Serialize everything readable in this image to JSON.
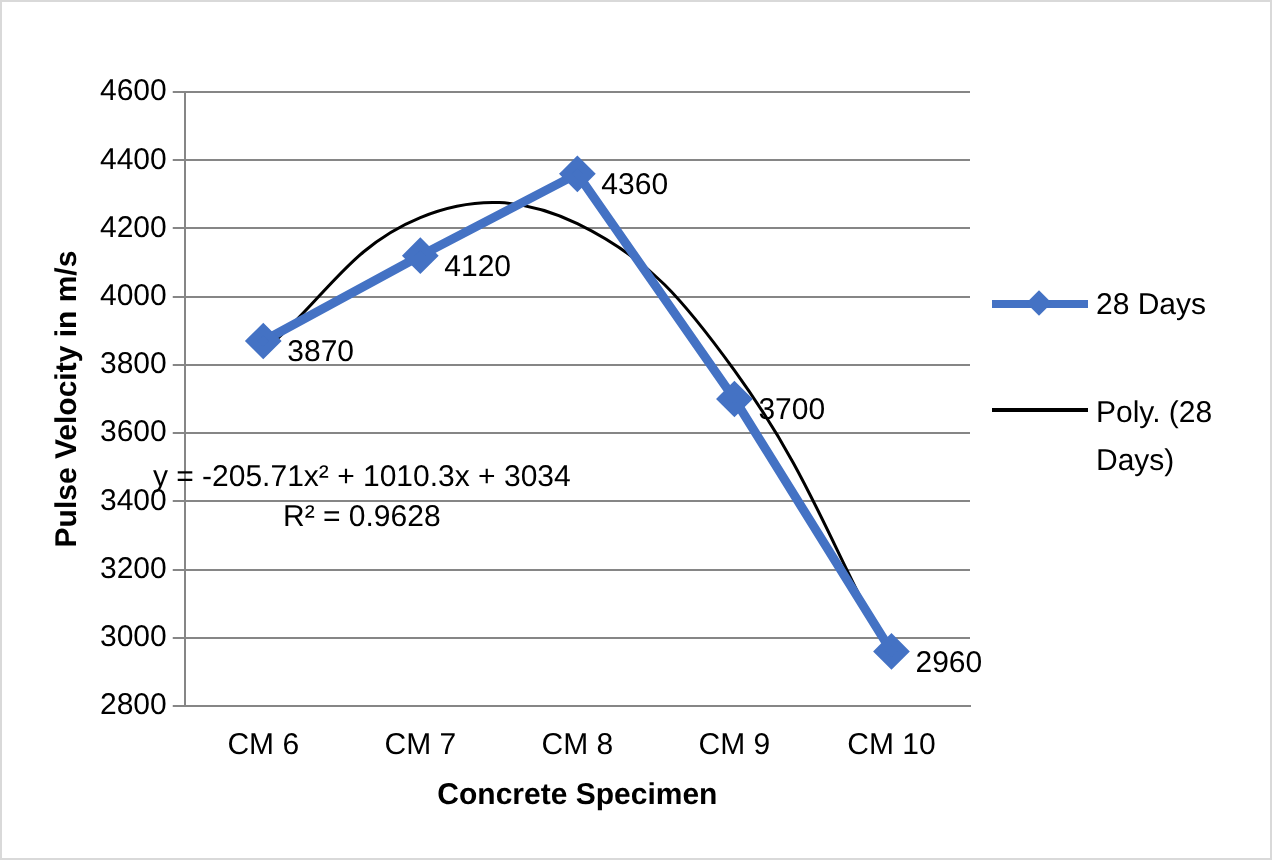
{
  "chart_data": {
    "type": "line",
    "xlabel": "Concrete Specimen",
    "ylabel": "Pulse Velocity in m/s",
    "categories": [
      "CM 6",
      "CM 7",
      "CM 8",
      "CM 9",
      "CM 10"
    ],
    "series": [
      {
        "name": "28 Days",
        "color": "#4472c4",
        "values": [
          3870,
          4120,
          4360,
          3700,
          2960
        ],
        "marker": "diamond",
        "data_labels": true
      },
      {
        "name": "Poly. (28 Days)",
        "color": "#000000",
        "values": [
          3839,
          4232,
          4214,
          3784,
          2943
        ],
        "marker": "none"
      }
    ],
    "ylim": [
      2800,
      4600
    ],
    "yticks": [
      2800,
      3000,
      3200,
      3400,
      3600,
      3800,
      4000,
      4200,
      4400,
      4600
    ],
    "grid": "y",
    "legend": "right",
    "annotations": [
      "y = -205.71x² + 1010.3x + 3034",
      "R² = 0.9628"
    ]
  }
}
